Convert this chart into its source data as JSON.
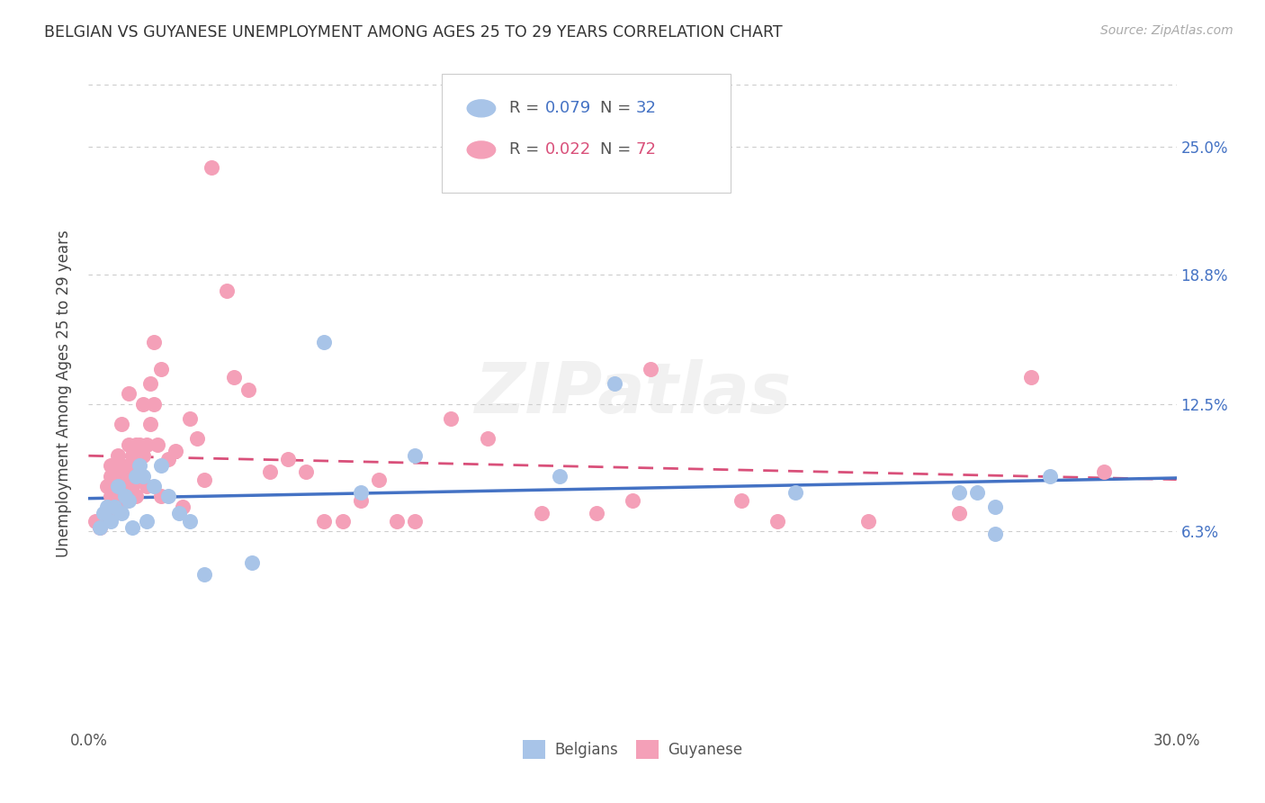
{
  "title": "BELGIAN VS GUYANESE UNEMPLOYMENT AMONG AGES 25 TO 29 YEARS CORRELATION CHART",
  "source": "Source: ZipAtlas.com",
  "ylabel": "Unemployment Among Ages 25 to 29 years",
  "xlim": [
    0.0,
    0.3
  ],
  "ylim": [
    -0.03,
    0.29
  ],
  "xtick_positions": [
    0.0,
    0.05,
    0.1,
    0.15,
    0.2,
    0.25,
    0.3
  ],
  "xticklabels": [
    "0.0%",
    "",
    "",
    "",
    "",
    "",
    "30.0%"
  ],
  "ytick_positions": [
    0.063,
    0.125,
    0.188,
    0.25
  ],
  "ytick_labels": [
    "6.3%",
    "12.5%",
    "18.8%",
    "25.0%"
  ],
  "legend_R1": "0.079",
  "legend_N1": "32",
  "legend_R2": "0.022",
  "legend_N2": "72",
  "belgian_color": "#A8C4E8",
  "guyanese_color": "#F4A0B8",
  "belgian_line_color": "#4472C4",
  "guyanese_line_color": "#D9507A",
  "text_color": "#555555",
  "grid_color": "#CCCCCC",
  "background_color": "#FFFFFF",
  "belgian_x": [
    0.003,
    0.004,
    0.005,
    0.006,
    0.007,
    0.008,
    0.009,
    0.01,
    0.011,
    0.012,
    0.013,
    0.014,
    0.015,
    0.016,
    0.018,
    0.02,
    0.022,
    0.025,
    0.028,
    0.032,
    0.045,
    0.065,
    0.075,
    0.09,
    0.13,
    0.145,
    0.195,
    0.24,
    0.245,
    0.25,
    0.25,
    0.265
  ],
  "belgian_y": [
    0.065,
    0.072,
    0.075,
    0.068,
    0.075,
    0.085,
    0.072,
    0.08,
    0.078,
    0.065,
    0.09,
    0.095,
    0.09,
    0.068,
    0.085,
    0.095,
    0.08,
    0.072,
    0.068,
    0.042,
    0.048,
    0.155,
    0.082,
    0.1,
    0.09,
    0.135,
    0.082,
    0.082,
    0.082,
    0.062,
    0.075,
    0.09
  ],
  "guyanese_x": [
    0.002,
    0.003,
    0.004,
    0.004,
    0.005,
    0.005,
    0.006,
    0.006,
    0.006,
    0.007,
    0.007,
    0.007,
    0.008,
    0.008,
    0.008,
    0.009,
    0.009,
    0.01,
    0.01,
    0.01,
    0.011,
    0.011,
    0.011,
    0.012,
    0.012,
    0.013,
    0.013,
    0.013,
    0.014,
    0.014,
    0.015,
    0.015,
    0.016,
    0.016,
    0.017,
    0.017,
    0.018,
    0.018,
    0.019,
    0.02,
    0.02,
    0.022,
    0.024,
    0.026,
    0.028,
    0.03,
    0.032,
    0.034,
    0.038,
    0.04,
    0.044,
    0.05,
    0.055,
    0.06,
    0.065,
    0.07,
    0.075,
    0.08,
    0.085,
    0.09,
    0.1,
    0.11,
    0.125,
    0.14,
    0.15,
    0.155,
    0.18,
    0.19,
    0.215,
    0.24,
    0.26,
    0.28
  ],
  "guyanese_y": [
    0.068,
    0.065,
    0.07,
    0.068,
    0.072,
    0.085,
    0.09,
    0.08,
    0.095,
    0.095,
    0.085,
    0.072,
    0.1,
    0.09,
    0.08,
    0.115,
    0.095,
    0.09,
    0.085,
    0.078,
    0.13,
    0.105,
    0.095,
    0.1,
    0.085,
    0.105,
    0.095,
    0.08,
    0.105,
    0.09,
    0.125,
    0.1,
    0.105,
    0.085,
    0.135,
    0.115,
    0.155,
    0.125,
    0.105,
    0.08,
    0.142,
    0.098,
    0.102,
    0.075,
    0.118,
    0.108,
    0.088,
    0.24,
    0.18,
    0.138,
    0.132,
    0.092,
    0.098,
    0.092,
    0.068,
    0.068,
    0.078,
    0.088,
    0.068,
    0.068,
    0.118,
    0.108,
    0.072,
    0.072,
    0.078,
    0.142,
    0.078,
    0.068,
    0.068,
    0.072,
    0.138,
    0.092
  ]
}
